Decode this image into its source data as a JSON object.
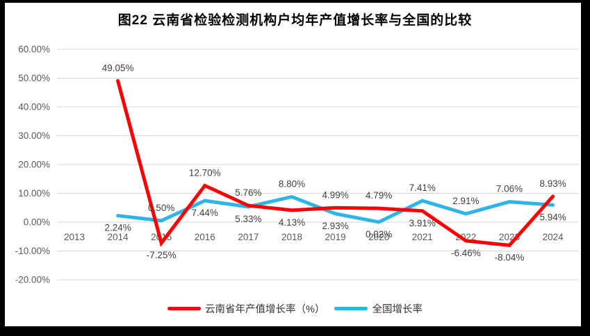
{
  "title": "图22  云南省检验检测机构户均年产值增长率与全国的比较",
  "colors": {
    "yunnan_line": "#fe0000",
    "national_line": "#2fb4e9",
    "gridline": "#d6d6d6",
    "axis_text": "#595959",
    "data_label_text": "#3f3f3f",
    "title_text": "#000000",
    "frame": "#000000",
    "background": "#ffffff"
  },
  "chart_data": {
    "type": "line",
    "title": "图22  云南省检验检测机构户均年产值增长率与全国的比较",
    "categories": [
      "2013",
      "2014",
      "2015",
      "2016",
      "2017",
      "2018",
      "2019",
      "2020",
      "2021",
      "2022",
      "2023",
      "2024"
    ],
    "y_axis": {
      "min": -20,
      "max": 60,
      "step": 10,
      "tick_labels": [
        "60.00%",
        "50.00%",
        "40.00%",
        "30.00%",
        "20.00%",
        "10.00%",
        "0.00%",
        "-10.00%",
        "-20.00%"
      ]
    },
    "grid": true,
    "legend_position": "bottom",
    "series": [
      {
        "id": "yunnan",
        "name": "云南省年产值增长率（%）",
        "color": "#fe0000",
        "values": [
          null,
          49.05,
          -7.25,
          12.7,
          5.76,
          4.13,
          4.99,
          4.79,
          3.91,
          -6.46,
          -8.04,
          8.93
        ],
        "point_labels": [
          null,
          "49.05%",
          "-7.25%",
          "12.70%",
          "5.76%",
          "4.13%",
          "4.99%",
          "4.79%",
          "3.91%",
          "-6.46%",
          "-8.04%",
          "8.93%"
        ],
        "label_side": [
          null,
          "above",
          "below",
          "above",
          "above",
          "below",
          "above",
          "above",
          "below",
          "below",
          "below",
          "above"
        ]
      },
      {
        "id": "national",
        "name": "全国增长率",
        "color": "#2fb4e9",
        "values": [
          null,
          2.24,
          0.5,
          7.44,
          5.33,
          8.8,
          2.93,
          0.02,
          7.41,
          2.91,
          7.06,
          5.94
        ],
        "point_labels": [
          null,
          "2.24%",
          "0.50%",
          "7.44%",
          "5.33%",
          "8.80%",
          "2.93%",
          "0.02%",
          "7.41%",
          "2.91%",
          "7.06%",
          "5.94%"
        ],
        "label_side": [
          null,
          "below",
          "above",
          "below",
          "below",
          "above",
          "below",
          "below",
          "above",
          "above",
          "above",
          "below"
        ]
      }
    ]
  }
}
